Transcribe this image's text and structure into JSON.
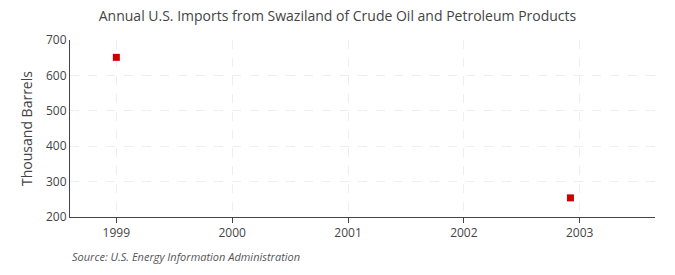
{
  "chart_data": {
    "type": "scatter",
    "title": "Annual U.S. Imports from Swaziland of Crude Oil and Petroleum Products",
    "ylabel": "Thousand Barrels",
    "annotation": "Source: U.S. Energy Information Administration",
    "x": [
      1999.0,
      2002.92
    ],
    "values": [
      651,
      254
    ],
    "color": "#cc0000",
    "marker": "square",
    "xlim": [
      1998.6,
      2003.65
    ],
    "ylim": [
      200,
      700
    ],
    "xticks": [
      1999,
      2000,
      2001,
      2002,
      2003
    ],
    "yticks": [
      200,
      300,
      400,
      500,
      600,
      700
    ],
    "grid": true
  }
}
